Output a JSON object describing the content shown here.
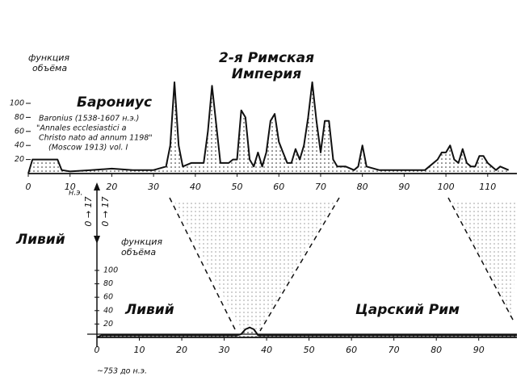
{
  "chart_data": [
    {
      "type": "area-line",
      "title": [
        "2-я Римская",
        "Империя"
      ],
      "subtitle": "Барониус",
      "y_label": [
        "функция",
        "объёма"
      ],
      "source": [
        "Baronius (1538-1607 н.э.)",
        "\"Annales ecclesiastici a",
        "Christo nato ad annum 1198\"",
        "(Moscow 1913) vol. I"
      ],
      "x_unit": "н.э.",
      "x": [
        0,
        1,
        7,
        8,
        10,
        15,
        20,
        25,
        30,
        33,
        34,
        35,
        36,
        37,
        39,
        42,
        43,
        44,
        45,
        46,
        48,
        49,
        50,
        51,
        52,
        53,
        54,
        55,
        56,
        57,
        58,
        59,
        60,
        61,
        62,
        63,
        64,
        65,
        66,
        67,
        68,
        69,
        70,
        71,
        72,
        73,
        74,
        76,
        78,
        79,
        80,
        81,
        84,
        88,
        90,
        95,
        96,
        98,
        99,
        100,
        101,
        102,
        103,
        104,
        105,
        106,
        107,
        108,
        109,
        110,
        112,
        113,
        115
      ],
      "values": [
        0,
        20,
        20,
        5,
        3,
        5,
        7,
        5,
        5,
        10,
        40,
        130,
        40,
        10,
        15,
        15,
        60,
        125,
        70,
        15,
        15,
        20,
        20,
        90,
        80,
        20,
        10,
        30,
        10,
        30,
        75,
        85,
        45,
        30,
        15,
        15,
        35,
        20,
        40,
        80,
        130,
        75,
        30,
        75,
        75,
        20,
        10,
        10,
        5,
        10,
        40,
        10,
        5,
        5,
        5,
        5,
        10,
        20,
        30,
        30,
        40,
        20,
        15,
        35,
        15,
        10,
        10,
        25,
        25,
        15,
        5,
        10,
        5
      ],
      "xlim": [
        0,
        117
      ],
      "ylim": [
        0,
        100
      ],
      "xticks": [
        0,
        10,
        20,
        30,
        40,
        50,
        60,
        70,
        80,
        90,
        100,
        110
      ],
      "yticks": [
        20,
        40,
        60,
        80,
        100
      ]
    },
    {
      "type": "area-line",
      "side_label": "Ливий",
      "axis_markers": [
        "0 → 17",
        "0 → 17"
      ],
      "y_label": [
        "функция",
        "объёма"
      ],
      "annotations": [
        "Ливий",
        "Царский Рим"
      ],
      "x_unit": "~753 до н.э.",
      "x": [
        0,
        1,
        30,
        33,
        34,
        35,
        36,
        37,
        38,
        40,
        99
      ],
      "values": [
        0,
        3,
        3,
        3,
        5,
        12,
        15,
        12,
        3,
        3,
        3
      ],
      "xlim": [
        0,
        99
      ],
      "ylim": [
        0,
        100
      ],
      "xticks": [
        0,
        10,
        20,
        30,
        40,
        50,
        60,
        70,
        80,
        90
      ],
      "yticks": [
        20,
        40,
        60,
        80,
        100
      ]
    }
  ]
}
